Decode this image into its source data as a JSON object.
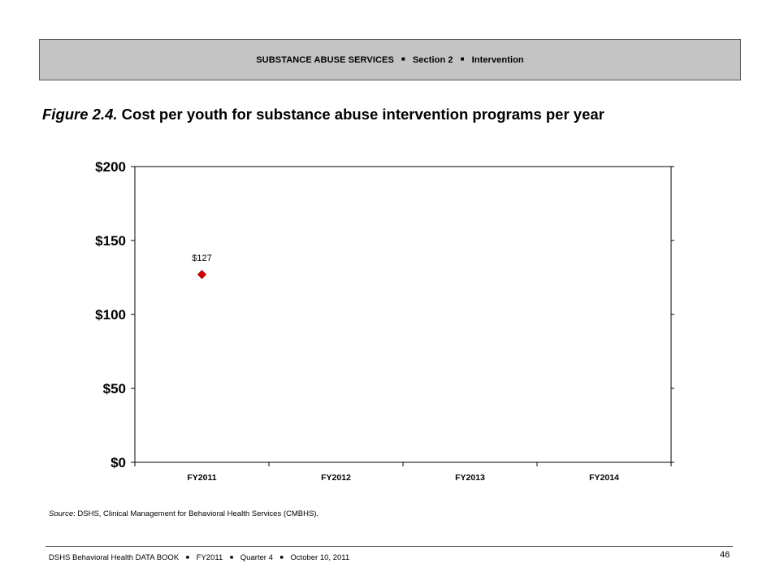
{
  "header": {
    "parts": [
      "SUBSTANCE ABUSE SERVICES",
      "Section 2",
      "Intervention"
    ],
    "separator": "■"
  },
  "figure": {
    "number": "Figure 2.4.",
    "caption": "Cost per youth for substance abuse intervention programs per year"
  },
  "chart_data": {
    "type": "scatter",
    "categories": [
      "FY2011",
      "FY2012",
      "FY2013",
      "FY2014"
    ],
    "series": [
      {
        "values": [
          127,
          null,
          null,
          null
        ],
        "labels": [
          "$127",
          "",
          "",
          ""
        ],
        "color": "#e00000",
        "marker": "diamond"
      }
    ],
    "ylim": [
      0,
      200
    ],
    "yticks": [
      0,
      50,
      100,
      150,
      200
    ],
    "ytick_labels": [
      "$0",
      "$50",
      "$100",
      "$150",
      "$200"
    ],
    "xlabel": "",
    "ylabel": "",
    "grid": false
  },
  "source": {
    "label": "Source",
    "text": ": DSHS, Clinical Management for Behavioral Health Services (CMBHS)."
  },
  "footer": {
    "parts": [
      "DSHS Behavioral Health DATA BOOK",
      "FY2011",
      "Quarter 4",
      "October 10, 2011"
    ],
    "separator": "■",
    "page_number": "46"
  }
}
